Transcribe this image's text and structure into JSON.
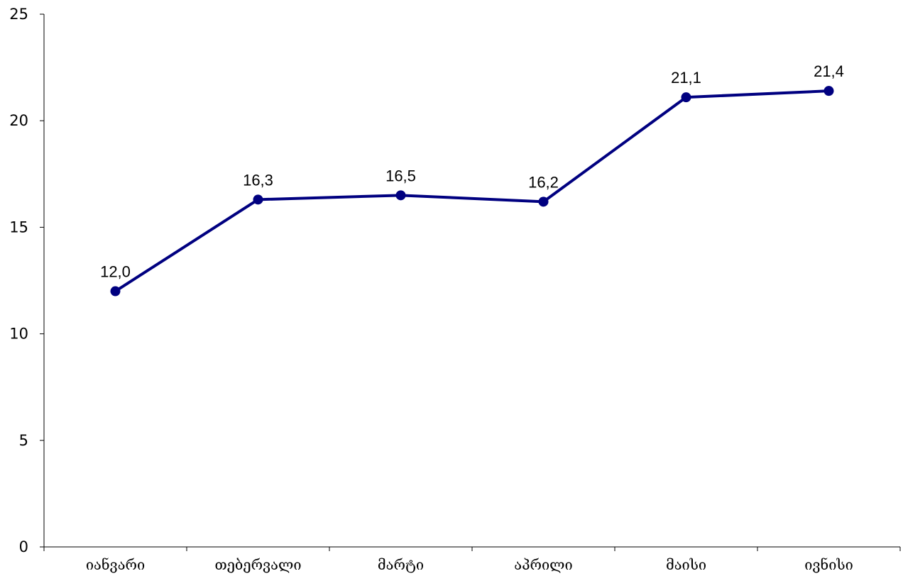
{
  "chart_data": {
    "type": "line",
    "categories": [
      "იანვარი",
      "თებერვალი",
      "მარტი",
      "აპრილი",
      "მაისი",
      "ივნისი"
    ],
    "series": [
      {
        "values": [
          12.0,
          16.3,
          16.5,
          16.2,
          21.1,
          21.4
        ]
      }
    ],
    "data_labels": [
      "12,0",
      "16,3",
      "16,5",
      "16,2",
      "21,1",
      "21,4"
    ],
    "yticks": [
      0,
      5,
      10,
      15,
      20,
      25
    ],
    "ylim": [
      0,
      25
    ],
    "grid": false,
    "legend": "none",
    "colors": {
      "line": "#000080",
      "axis": "#000000"
    }
  }
}
